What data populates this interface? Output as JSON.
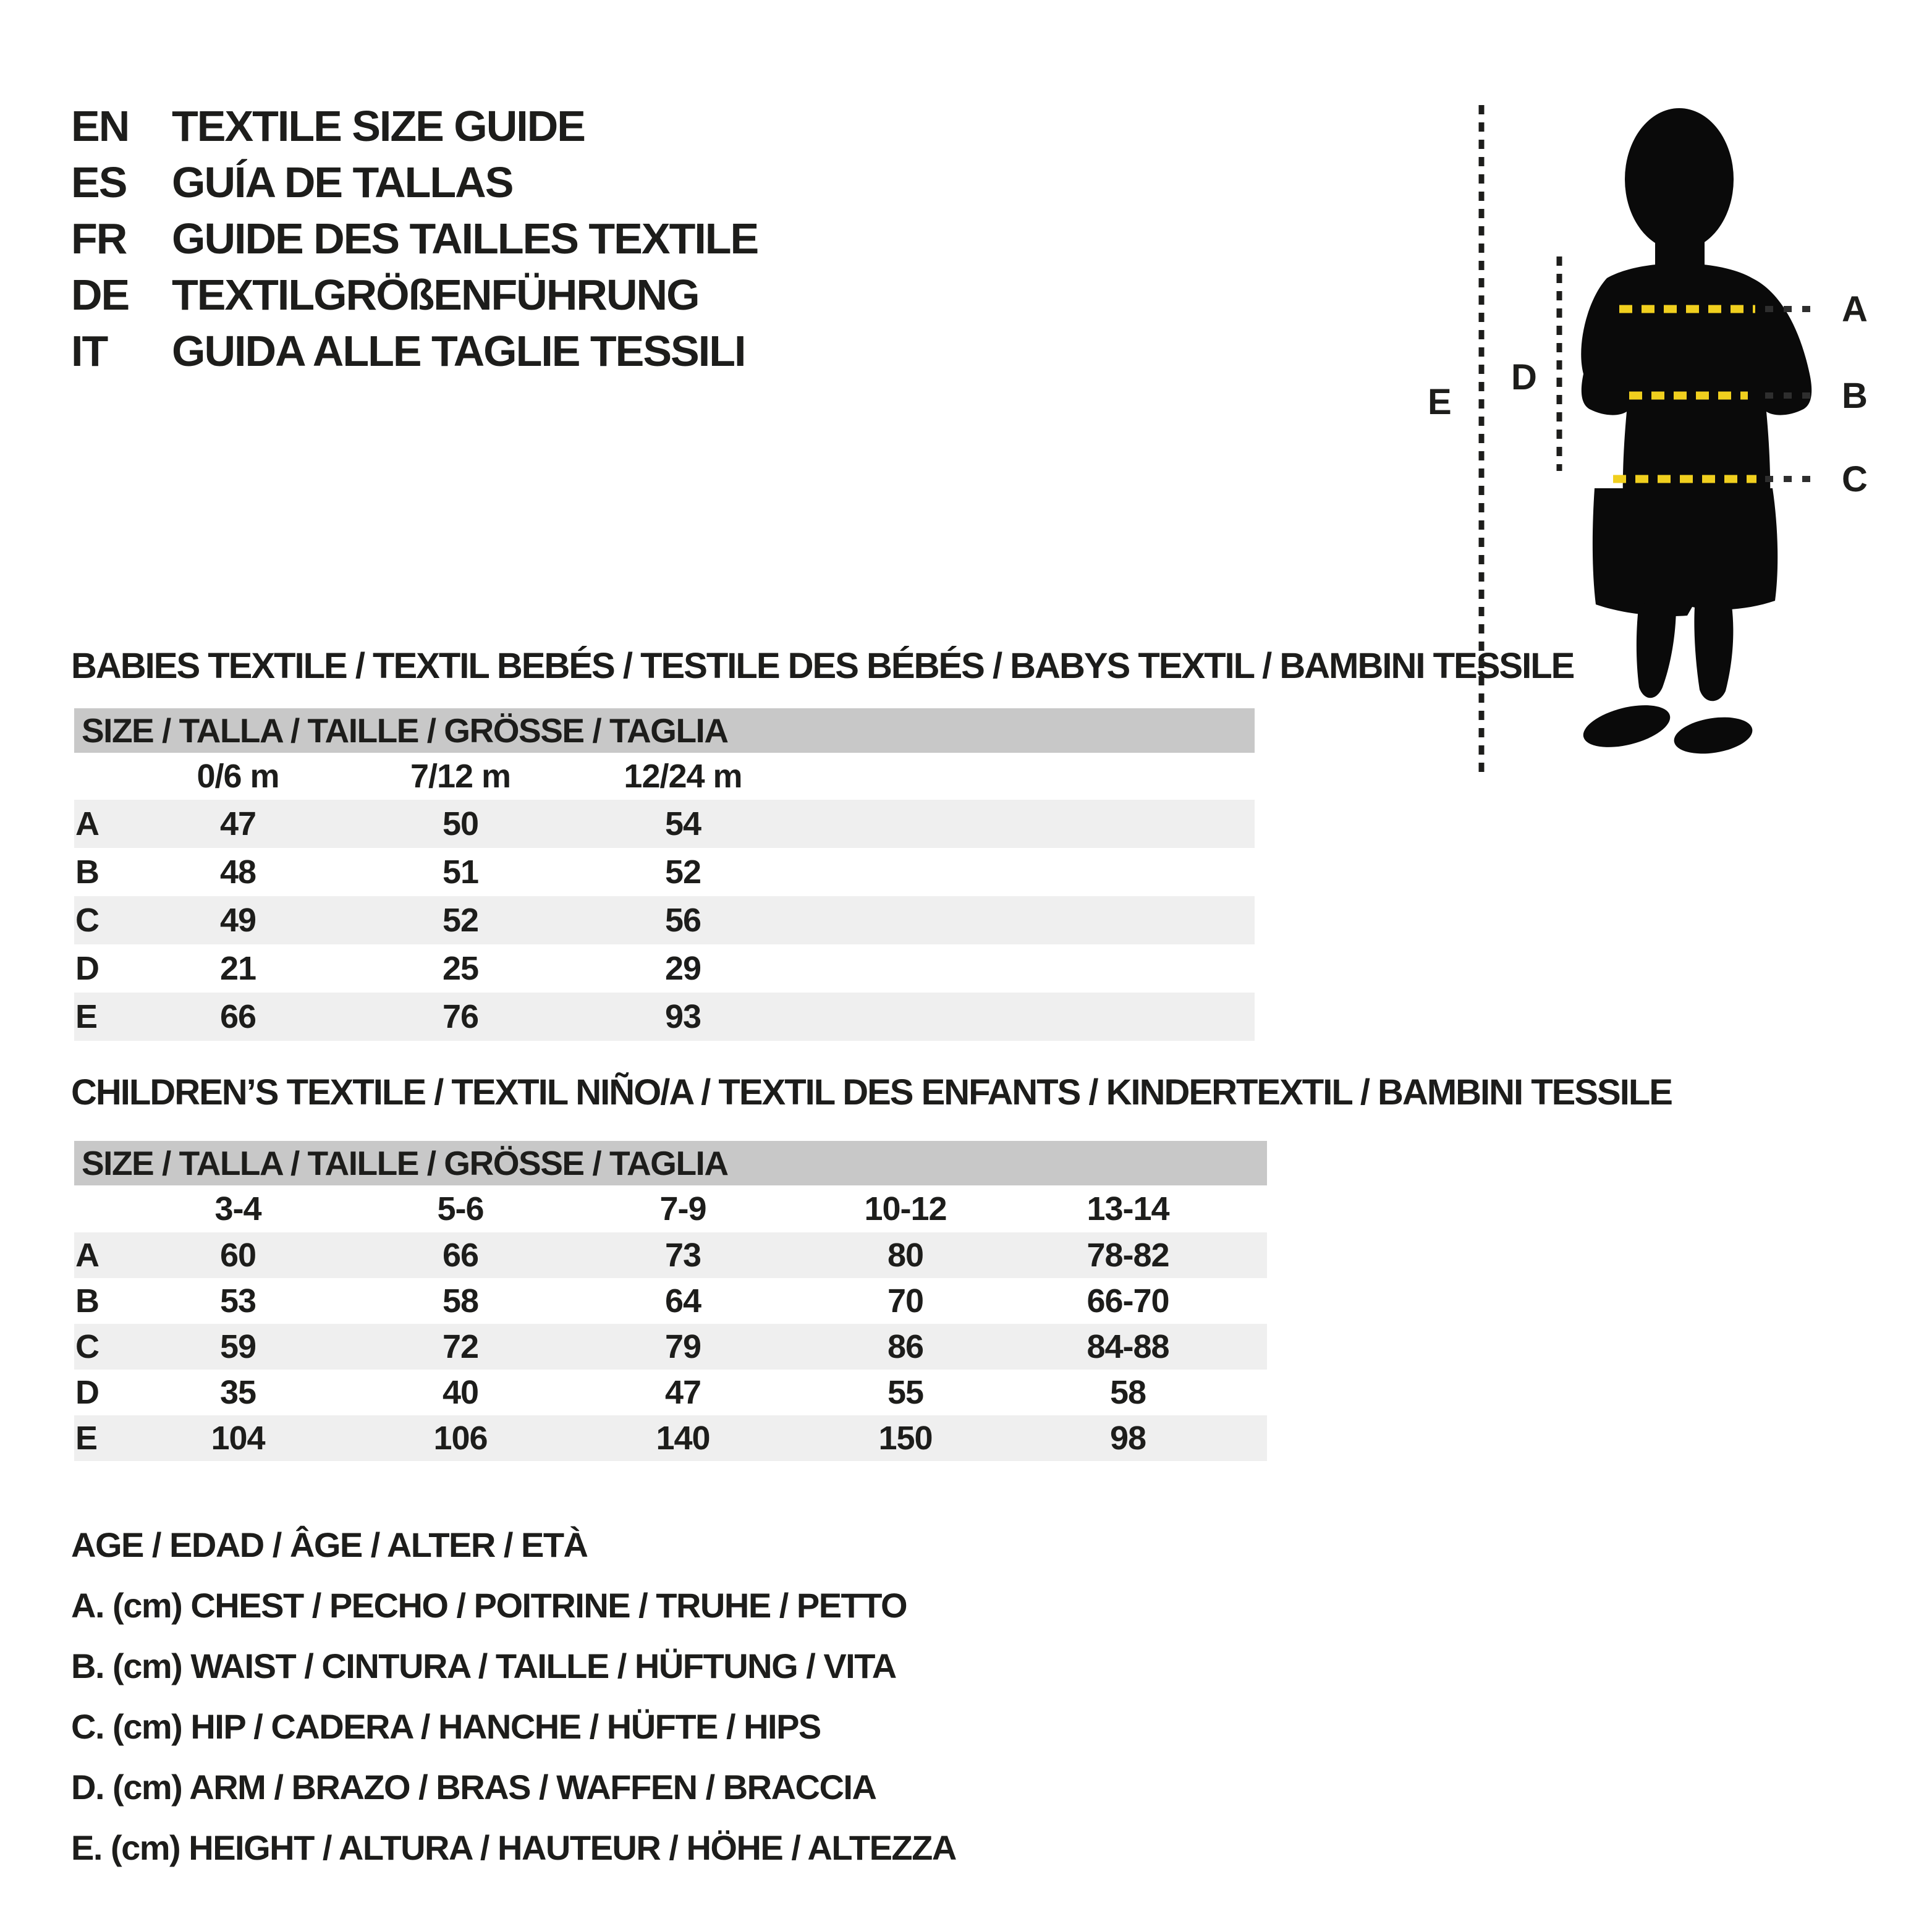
{
  "colors": {
    "background": "#ffffff",
    "text": "#1d1d1b",
    "silhouette": "#0a0a0a",
    "accent_yellow": "#f0cf1e",
    "dash_dark": "#2e2e2e",
    "bar_gray": "#c8c8c8",
    "row_gray": "#efefef"
  },
  "header": {
    "languages": [
      {
        "code": "EN",
        "title": "TEXTILE SIZE GUIDE"
      },
      {
        "code": "ES",
        "title": "GUÍA DE TALLAS"
      },
      {
        "code": "FR",
        "title": "GUIDE DES TAILLES TEXTILE"
      },
      {
        "code": "DE",
        "title": "TEXTILGRÖßENFÜHRUNG"
      },
      {
        "code": "IT",
        "title": "GUIDA ALLE TAGLIE TESSILI"
      }
    ]
  },
  "figure": {
    "labels": {
      "a": "A",
      "b": "B",
      "c": "C",
      "d": "D",
      "e": "E"
    }
  },
  "babies_table": {
    "section_title": "BABIES TEXTILE / TEXTIL BEBÉS / TESTILE DES BÉBÉS / BABYS TEXTIL / BAMBINI TESSILE",
    "header": "SIZE / TALLA / TAILLE / GRÖSSE / TAGLIA",
    "columns": [
      "0/6 m",
      "7/12 m",
      "12/24 m"
    ],
    "rows": [
      {
        "label": "A",
        "values": [
          "47",
          "50",
          "54"
        ]
      },
      {
        "label": "B",
        "values": [
          "48",
          "51",
          "52"
        ]
      },
      {
        "label": "C",
        "values": [
          "49",
          "52",
          "56"
        ]
      },
      {
        "label": "D",
        "values": [
          "21",
          "25",
          "29"
        ]
      },
      {
        "label": "E",
        "values": [
          "66",
          "76",
          "93"
        ]
      }
    ]
  },
  "children_table": {
    "section_title": "CHILDREN’S TEXTILE / TEXTIL NIÑO/A / TEXTIL DES ENFANTS / KINDERTEXTIL / BAMBINI TESSILE",
    "header": "SIZE / TALLA / TAILLE / GRÖSSE / TAGLIA",
    "columns": [
      "3-4",
      "5-6",
      "7-9",
      "10-12",
      "13-14"
    ],
    "rows": [
      {
        "label": "A",
        "values": [
          "60",
          "66",
          "73",
          "80",
          "78-82"
        ]
      },
      {
        "label": "B",
        "values": [
          "53",
          "58",
          "64",
          "70",
          "66-70"
        ]
      },
      {
        "label": "C",
        "values": [
          "59",
          "72",
          "79",
          "86",
          "84-88"
        ]
      },
      {
        "label": "D",
        "values": [
          "35",
          "40",
          "47",
          "55",
          "58"
        ]
      },
      {
        "label": "E",
        "values": [
          "104",
          "106",
          "140",
          "150",
          "98"
        ]
      }
    ]
  },
  "legend": {
    "lines": [
      "AGE / EDAD / ÂGE / ALTER / ETÀ",
      "A. (cm) CHEST / PECHO / POITRINE / TRUHE / PETTO",
      "B. (cm) WAIST / CINTURA / TAILLE / HÜFTUNG / VITA",
      "C. (cm) HIP / CADERA / HANCHE / HÜFTE / HIPS",
      "D. (cm) ARM / BRAZO / BRAS / WAFFEN / BRACCIA",
      "E. (cm) HEIGHT / ALTURA / HAUTEUR / HÖHE / ALTEZZA"
    ]
  }
}
